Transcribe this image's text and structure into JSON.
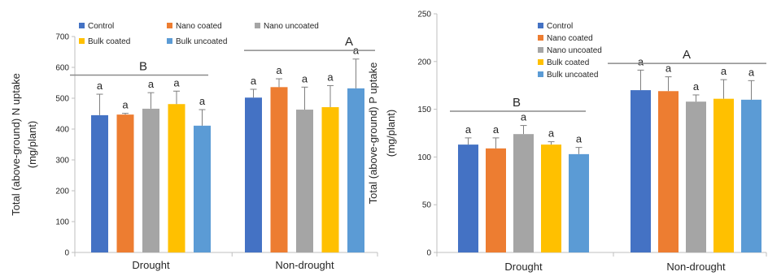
{
  "chart_data": [
    {
      "type": "bar",
      "ylabel_line1": "Total (above-ground) N uptake",
      "ylabel_line2": "(mg/plant)",
      "categories": [
        "Drought",
        "Non-drought"
      ],
      "ylim": [
        0,
        700
      ],
      "yticks": [
        "0",
        "100",
        "200",
        "300",
        "400",
        "500",
        "600",
        "700"
      ],
      "series": [
        {
          "name": "Control",
          "color": "#4472C4",
          "values": [
            445,
            502
          ],
          "errors": [
            68,
            27
          ]
        },
        {
          "name": "Nano coated",
          "color": "#ED7D31",
          "values": [
            447,
            536
          ],
          "errors": [
            4,
            27
          ]
        },
        {
          "name": "Bulk coated",
          "color": "#FFC000",
          "values": [
            481,
            471
          ],
          "errors": [
            42,
            70
          ]
        },
        {
          "name": "Nano uncoated",
          "color": "#A5A5A5",
          "values": [
            466,
            463
          ],
          "errors": [
            52,
            73
          ]
        },
        {
          "name": "Bulk uncoated",
          "color": "#5B9BD5",
          "values": [
            411,
            532
          ],
          "errors": [
            52,
            95
          ]
        }
      ],
      "bar_order": [
        "Control",
        "Nano coated",
        "Nano uncoated",
        "Bulk coated",
        "Bulk uncoated"
      ],
      "bar_labels": [
        "a",
        "a",
        "a",
        "a",
        "a"
      ],
      "group_labels": [
        "B",
        "A"
      ],
      "group_line_values": [
        575,
        655
      ],
      "legend_placement": "top"
    },
    {
      "type": "bar",
      "ylabel_line1": "Total (above-ground) P uptake",
      "ylabel_line2": "(mg/plant)",
      "categories": [
        "Drought",
        "Non-drought"
      ],
      "ylim": [
        0,
        250
      ],
      "yticks": [
        "0",
        "50",
        "100",
        "150",
        "200",
        "250"
      ],
      "series": [
        {
          "name": "Control",
          "color": "#4472C4",
          "values": [
            113,
            170
          ],
          "errors": [
            7,
            21
          ]
        },
        {
          "name": "Nano coated",
          "color": "#ED7D31",
          "values": [
            109,
            169
          ],
          "errors": [
            11,
            15
          ]
        },
        {
          "name": "Nano uncoated",
          "color": "#A5A5A5",
          "values": [
            124,
            158
          ],
          "errors": [
            9,
            7
          ]
        },
        {
          "name": "Bulk coated",
          "color": "#FFC000",
          "values": [
            113,
            161
          ],
          "errors": [
            3,
            20
          ]
        },
        {
          "name": "Bulk uncoated",
          "color": "#5B9BD5",
          "values": [
            103,
            160
          ],
          "errors": [
            7,
            20
          ]
        }
      ],
      "bar_order": [
        "Control",
        "Nano coated",
        "Nano uncoated",
        "Bulk coated",
        "Bulk uncoated"
      ],
      "bar_labels": [
        "a",
        "a",
        "a",
        "a",
        "a"
      ],
      "group_labels": [
        "B",
        "A"
      ],
      "group_line_values": [
        148,
        198
      ],
      "legend_placement": "top-center"
    }
  ]
}
